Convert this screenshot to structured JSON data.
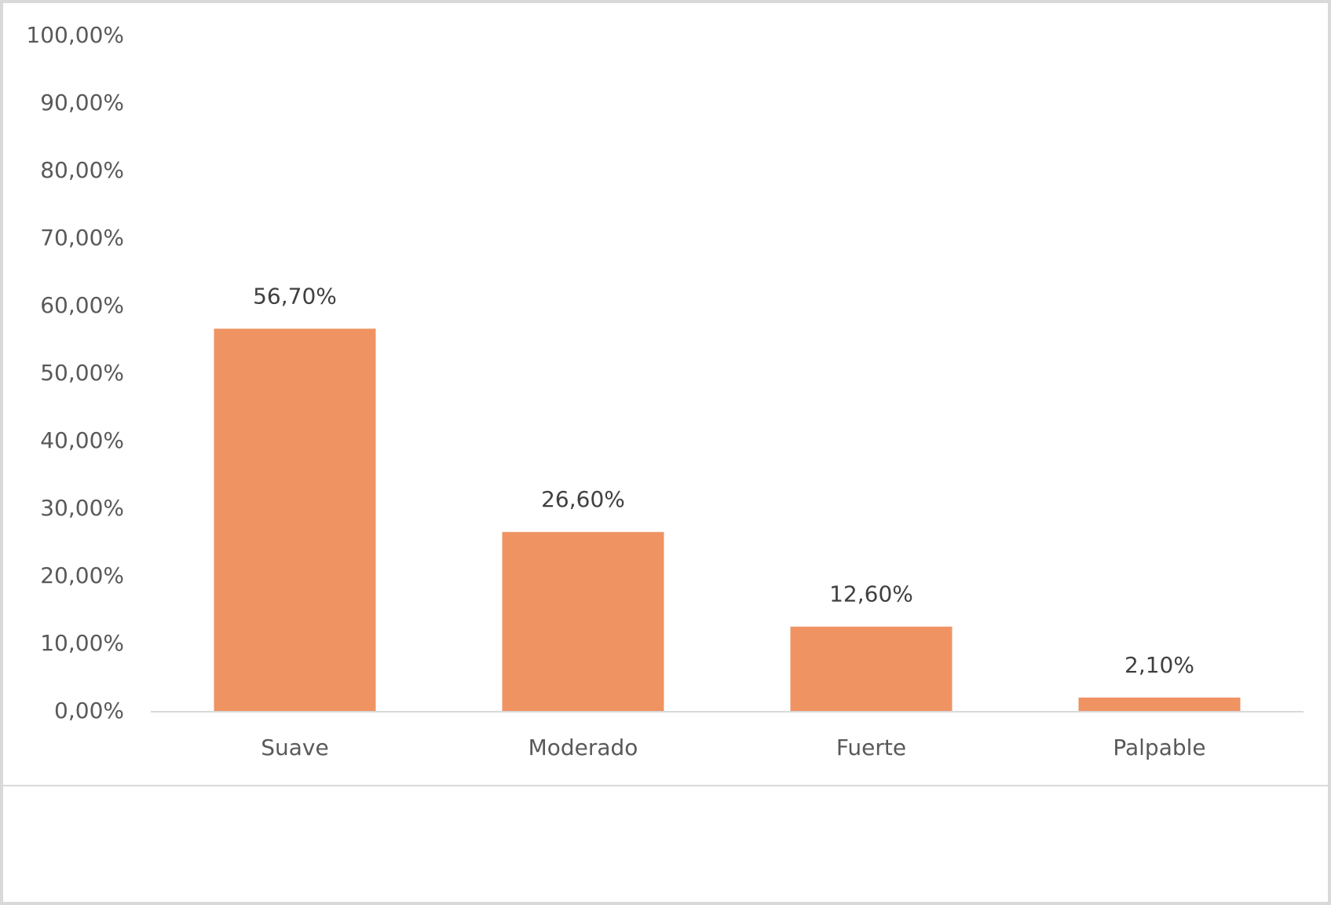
{
  "chart_data": {
    "type": "bar",
    "categories": [
      "Suave",
      "Moderado",
      "Fuerte",
      "Palpable"
    ],
    "values": [
      56.7,
      26.6,
      12.6,
      2.1
    ],
    "value_labels": [
      "56,70%",
      "26,60%",
      "12,60%",
      "2,10%"
    ],
    "color": "#ef9363",
    "ylim": [
      0,
      100
    ],
    "yticks": [
      {
        "value": 0,
        "label": "0,00%"
      },
      {
        "value": 10,
        "label": "10,00%"
      },
      {
        "value": 20,
        "label": "20,00%"
      },
      {
        "value": 30,
        "label": "30,00%"
      },
      {
        "value": 40,
        "label": "40,00%"
      },
      {
        "value": 50,
        "label": "50,00%"
      },
      {
        "value": 60,
        "label": "60,00%"
      },
      {
        "value": 70,
        "label": "70,00%"
      },
      {
        "value": 80,
        "label": "80,00%"
      },
      {
        "value": 90,
        "label": "90,00%"
      },
      {
        "value": 100,
        "label": "100,00%"
      }
    ],
    "grid": false
  }
}
